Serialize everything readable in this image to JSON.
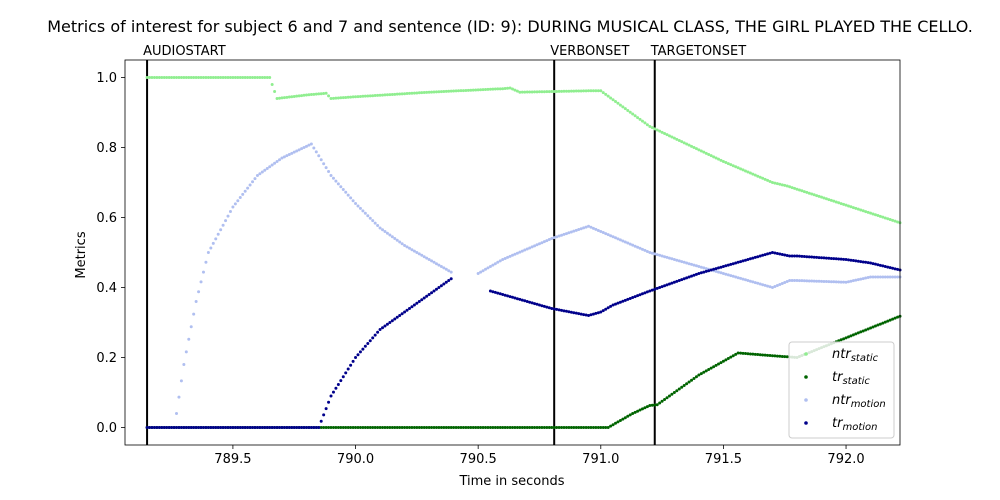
{
  "chart_data": {
    "type": "scatter",
    "title": "Metrics of interest for subject 6 and 7 and sentence (ID: 9): DURING MUSICAL CLASS, THE GIRL PLAYED THE CELLO.",
    "xlabel": "Time in seconds",
    "ylabel": "Metrics",
    "xlim": [
      789.06,
      792.22
    ],
    "ylim": [
      -0.05,
      1.05
    ],
    "xticks": [
      789.5,
      790.0,
      790.5,
      791.0,
      791.5,
      792.0
    ],
    "xtick_labels": [
      "789.5",
      "790.0",
      "790.5",
      "791.0",
      "791.5",
      "792.0"
    ],
    "yticks": [
      0.0,
      0.2,
      0.4,
      0.6,
      0.8,
      1.0
    ],
    "ytick_labels": [
      "0.0",
      "0.2",
      "0.4",
      "0.6",
      "0.8",
      "1.0"
    ],
    "grid": false,
    "legend_position": "lower right",
    "events": [
      {
        "label": "AUDIOSTART",
        "x": 789.15
      },
      {
        "label": "VERBONSET",
        "x": 790.81
      },
      {
        "label": "TARGETONSET",
        "x": 791.22
      }
    ],
    "series": [
      {
        "key": "ntr_static",
        "name_main": "ntr",
        "name_sub": "static",
        "color": "#90ee90",
        "points": [
          [
            789.15,
            1.0
          ],
          [
            789.65,
            1.0
          ],
          [
            789.68,
            0.94
          ],
          [
            789.8,
            0.95
          ],
          [
            789.88,
            0.955
          ],
          [
            789.9,
            0.94
          ],
          [
            790.0,
            0.945
          ],
          [
            790.3,
            0.958
          ],
          [
            790.6,
            0.968
          ],
          [
            790.63,
            0.97
          ],
          [
            790.67,
            0.958
          ],
          [
            790.95,
            0.962
          ],
          [
            791.0,
            0.962
          ],
          [
            791.2,
            0.86
          ],
          [
            791.5,
            0.76
          ],
          [
            791.7,
            0.7
          ],
          [
            791.76,
            0.69
          ],
          [
            792.22,
            0.585
          ]
        ]
      },
      {
        "key": "tr_static",
        "name_main": "tr",
        "name_sub": "static",
        "color": "#006400",
        "points": [
          [
            789.15,
            0.0
          ],
          [
            791.03,
            0.0
          ],
          [
            791.13,
            0.04
          ],
          [
            791.2,
            0.063
          ],
          [
            791.23,
            0.065
          ],
          [
            791.4,
            0.15
          ],
          [
            791.56,
            0.213
          ],
          [
            791.7,
            0.205
          ],
          [
            791.8,
            0.2
          ],
          [
            792.22,
            0.318
          ]
        ]
      },
      {
        "key": "ntr_motion",
        "name_main": "ntr",
        "name_sub": "motion",
        "color": "#b0bff0",
        "points": [
          [
            789.27,
            0.04
          ],
          [
            789.3,
            0.18
          ],
          [
            789.35,
            0.36
          ],
          [
            789.4,
            0.5
          ],
          [
            789.5,
            0.63
          ],
          [
            789.6,
            0.72
          ],
          [
            789.7,
            0.77
          ],
          [
            789.82,
            0.81
          ],
          [
            789.9,
            0.72
          ],
          [
            790.0,
            0.64
          ],
          [
            790.1,
            0.57
          ],
          [
            790.2,
            0.52
          ],
          [
            790.3,
            0.48
          ],
          [
            790.4,
            0.44
          ],
          [
            790.5,
            0.44
          ],
          [
            790.6,
            0.48
          ],
          [
            790.8,
            0.54
          ],
          [
            790.95,
            0.575
          ],
          [
            791.2,
            0.5
          ],
          [
            791.5,
            0.44
          ],
          [
            791.7,
            0.4
          ],
          [
            791.77,
            0.42
          ],
          [
            791.8,
            0.42
          ],
          [
            792.0,
            0.415
          ],
          [
            792.1,
            0.43
          ],
          [
            792.22,
            0.43
          ]
        ]
      },
      {
        "key": "tr_motion",
        "name_main": "tr",
        "name_sub": "motion",
        "color": "#00008b",
        "points": [
          [
            789.15,
            0.0
          ],
          [
            789.85,
            0.0
          ],
          [
            789.9,
            0.09
          ],
          [
            790.0,
            0.2
          ],
          [
            790.1,
            0.28
          ],
          [
            790.2,
            0.33
          ],
          [
            790.3,
            0.38
          ],
          [
            790.4,
            0.43
          ],
          [
            790.55,
            0.39
          ],
          [
            790.7,
            0.36
          ],
          [
            790.8,
            0.34
          ],
          [
            790.95,
            0.32
          ],
          [
            791.0,
            0.33
          ],
          [
            791.05,
            0.35
          ],
          [
            791.2,
            0.39
          ],
          [
            791.4,
            0.44
          ],
          [
            791.6,
            0.48
          ],
          [
            791.7,
            0.5
          ],
          [
            791.77,
            0.49
          ],
          [
            791.8,
            0.49
          ],
          [
            792.0,
            0.48
          ],
          [
            792.1,
            0.47
          ],
          [
            792.22,
            0.45
          ]
        ]
      }
    ]
  }
}
